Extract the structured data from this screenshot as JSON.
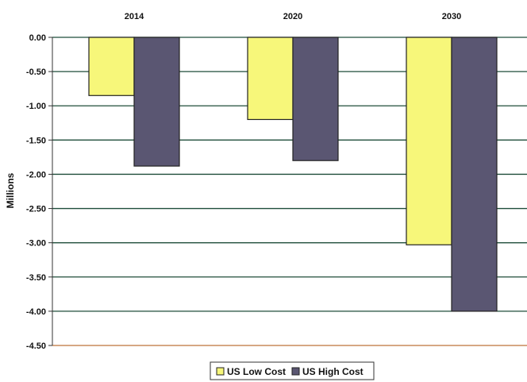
{
  "chart_data": {
    "type": "bar",
    "orientation": "vertical",
    "categories": [
      "2014",
      "2020",
      "2030"
    ],
    "category_axis_position": "top",
    "ylabel": "Millions",
    "ylim": [
      -4.5,
      0
    ],
    "yticks": [
      "0.00",
      "-0.50",
      "-1.00",
      "-1.50",
      "-2.00",
      "-2.50",
      "-3.00",
      "-3.50",
      "-4.00",
      "-4.50"
    ],
    "grid": true,
    "legend_position": "bottom",
    "series": [
      {
        "name": "US Low Cost",
        "color": "#f7f77a",
        "values": [
          -0.85,
          -1.2,
          -3.03
        ]
      },
      {
        "name": "US High Cost",
        "color": "#5a5672",
        "values": [
          -1.88,
          -1.8,
          -4.0
        ]
      }
    ]
  }
}
